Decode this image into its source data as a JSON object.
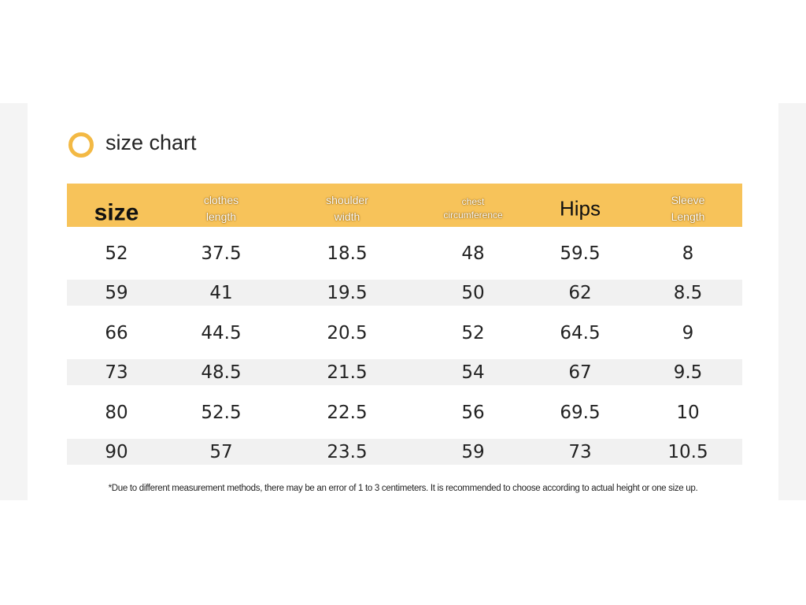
{
  "title": "size chart",
  "table": {
    "headers": [
      "size",
      "clothes length",
      "shoulder width",
      "chest circumference",
      "Hips",
      "Sleeve Length"
    ],
    "rows": [
      [
        52,
        37.5,
        18.5,
        48,
        59.5,
        8
      ],
      [
        59,
        41,
        19.5,
        50,
        62,
        8.5
      ],
      [
        66,
        44.5,
        20.5,
        52,
        64.5,
        9
      ],
      [
        73,
        48.5,
        21.5,
        54,
        67,
        9.5
      ],
      [
        80,
        52.5,
        22.5,
        56,
        69.5,
        10
      ],
      [
        90,
        57,
        23.5,
        59,
        73,
        10.5
      ]
    ]
  },
  "footnote": "*Due to different measurement methods, there may be an error of 1 to 3 centimeters. It is recommended to choose according to actual height or one size up."
}
